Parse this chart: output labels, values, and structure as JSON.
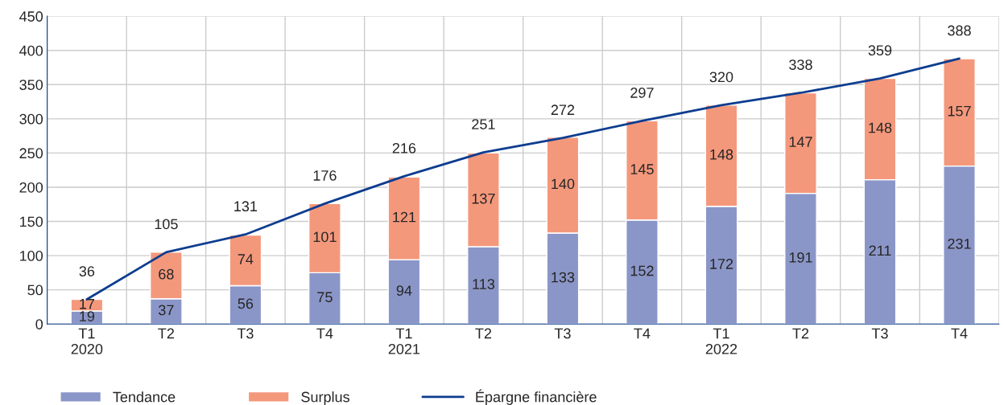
{
  "chart_data": {
    "type": "bar",
    "stacked": true,
    "categories": [
      "T1\n2020",
      "T2",
      "T3",
      "T4",
      "T1\n2021",
      "T2",
      "T3",
      "T4",
      "T1\n2022",
      "T2",
      "T3",
      "T4"
    ],
    "series": [
      {
        "name": "Tendance",
        "color": "#8b96c8",
        "values": [
          19,
          37,
          56,
          75,
          94,
          113,
          133,
          152,
          172,
          191,
          211,
          231
        ]
      },
      {
        "name": "Surplus",
        "color": "#f4987c",
        "values": [
          17,
          68,
          74,
          101,
          121,
          137,
          140,
          145,
          148,
          147,
          148,
          157
        ]
      },
      {
        "name": "Épargne financière",
        "type": "line",
        "color": "#0d3d8f",
        "values": [
          36,
          105,
          131,
          176,
          216,
          251,
          272,
          297,
          320,
          338,
          359,
          388
        ]
      }
    ],
    "ylim": [
      0,
      450
    ],
    "yticks": [
      0,
      50,
      100,
      150,
      200,
      250,
      300,
      350,
      400,
      450
    ],
    "data_labels": true,
    "grid": true,
    "legend": "bottom left",
    "marker": "none",
    "line_style": "solid"
  }
}
